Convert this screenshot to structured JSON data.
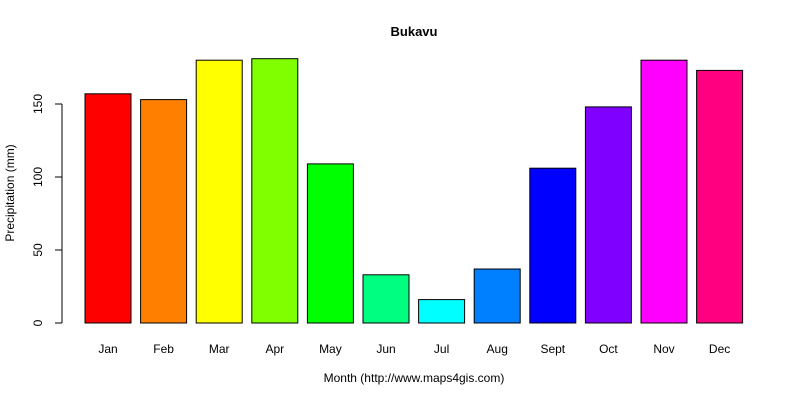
{
  "chart_data": {
    "type": "bar",
    "title": "Bukavu",
    "xlabel": "Month (http://www.maps4gis.com)",
    "ylabel": "Precipitation (mm)",
    "categories": [
      "Jan",
      "Feb",
      "Mar",
      "Apr",
      "May",
      "Jun",
      "Jul",
      "Aug",
      "Sept",
      "Oct",
      "Nov",
      "Dec"
    ],
    "values": [
      157,
      153,
      180,
      181,
      109,
      33,
      16,
      37,
      106,
      148,
      180,
      173
    ],
    "colors": [
      "#FF0000",
      "#FF8000",
      "#FFFF00",
      "#80FF00",
      "#00FF00",
      "#00FF80",
      "#00FFFF",
      "#0080FF",
      "#0000FF",
      "#8000FF",
      "#FF00FF",
      "#FF0080"
    ],
    "yticks": [
      0,
      50,
      100,
      150
    ],
    "ylim": [
      0,
      181
    ],
    "grid": false,
    "legend": "none"
  }
}
